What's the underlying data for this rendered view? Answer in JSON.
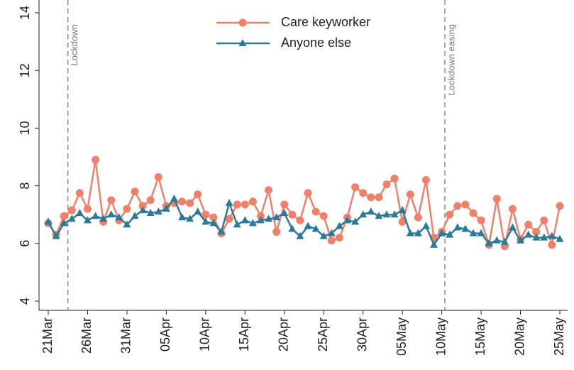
{
  "chart_data": {
    "type": "line",
    "categories": [
      "21Mar",
      null,
      null,
      null,
      null,
      "26Mar",
      null,
      null,
      null,
      null,
      "31Mar",
      null,
      null,
      null,
      null,
      "05Apr",
      null,
      null,
      null,
      null,
      "10Apr",
      null,
      null,
      null,
      null,
      "15Apr",
      null,
      null,
      null,
      null,
      "20Apr",
      null,
      null,
      null,
      null,
      "25Apr",
      null,
      null,
      null,
      null,
      "30Apr",
      null,
      null,
      null,
      null,
      "05May",
      null,
      null,
      null,
      null,
      "10May",
      null,
      null,
      null,
      null,
      "15May",
      null,
      null,
      null,
      null,
      "20May",
      null,
      null,
      null,
      null,
      "25May"
    ],
    "series": [
      {
        "name": "Care keyworker",
        "color": "#f0806a",
        "marker": "circle",
        "values": [
          6.7,
          6.3,
          6.95,
          7.15,
          7.75,
          7.2,
          8.9,
          6.75,
          7.5,
          6.8,
          7.2,
          7.8,
          7.3,
          7.5,
          8.3,
          7.3,
          7.4,
          7.45,
          7.4,
          7.7,
          7.0,
          6.9,
          6.35,
          6.85,
          7.35,
          7.35,
          7.45,
          6.95,
          7.85,
          6.4,
          7.35,
          7.0,
          6.8,
          7.75,
          7.1,
          6.95,
          6.1,
          6.2,
          6.9,
          7.95,
          7.75,
          7.6,
          7.6,
          8.05,
          8.25,
          6.75,
          7.7,
          6.9,
          8.2,
          6.2,
          6.4,
          7.0,
          7.3,
          7.35,
          7.05,
          6.8,
          5.95,
          7.55,
          5.9,
          7.2,
          6.15,
          6.65,
          6.4,
          6.8,
          5.95,
          7.3
        ]
      },
      {
        "name": "Anyone else",
        "color": "#2b7b98",
        "marker": "triangle",
        "values": [
          6.75,
          6.25,
          6.7,
          6.85,
          7.05,
          6.8,
          6.95,
          6.85,
          7.0,
          6.9,
          6.65,
          6.95,
          7.15,
          7.05,
          7.1,
          7.2,
          7.55,
          6.9,
          6.85,
          7.1,
          6.75,
          6.7,
          6.4,
          7.4,
          6.65,
          6.8,
          6.7,
          6.8,
          6.85,
          6.9,
          7.05,
          6.5,
          6.25,
          6.6,
          6.5,
          6.25,
          6.35,
          6.6,
          6.8,
          6.75,
          7.0,
          7.1,
          6.95,
          7.0,
          7.0,
          7.15,
          6.35,
          6.35,
          6.6,
          5.95,
          6.35,
          6.3,
          6.55,
          6.5,
          6.35,
          6.35,
          6.0,
          6.1,
          6.05,
          6.55,
          6.1,
          6.3,
          6.2,
          6.2,
          6.25,
          6.15
        ]
      }
    ],
    "ylim": [
      4,
      14
    ],
    "yticks": [
      4,
      6,
      8,
      10,
      12,
      14
    ],
    "grid": false,
    "vlines": [
      {
        "x": 2.5,
        "label": "Lockdown"
      },
      {
        "x": 50.4,
        "label": "Lockdown easing"
      }
    ],
    "legend": "top"
  }
}
